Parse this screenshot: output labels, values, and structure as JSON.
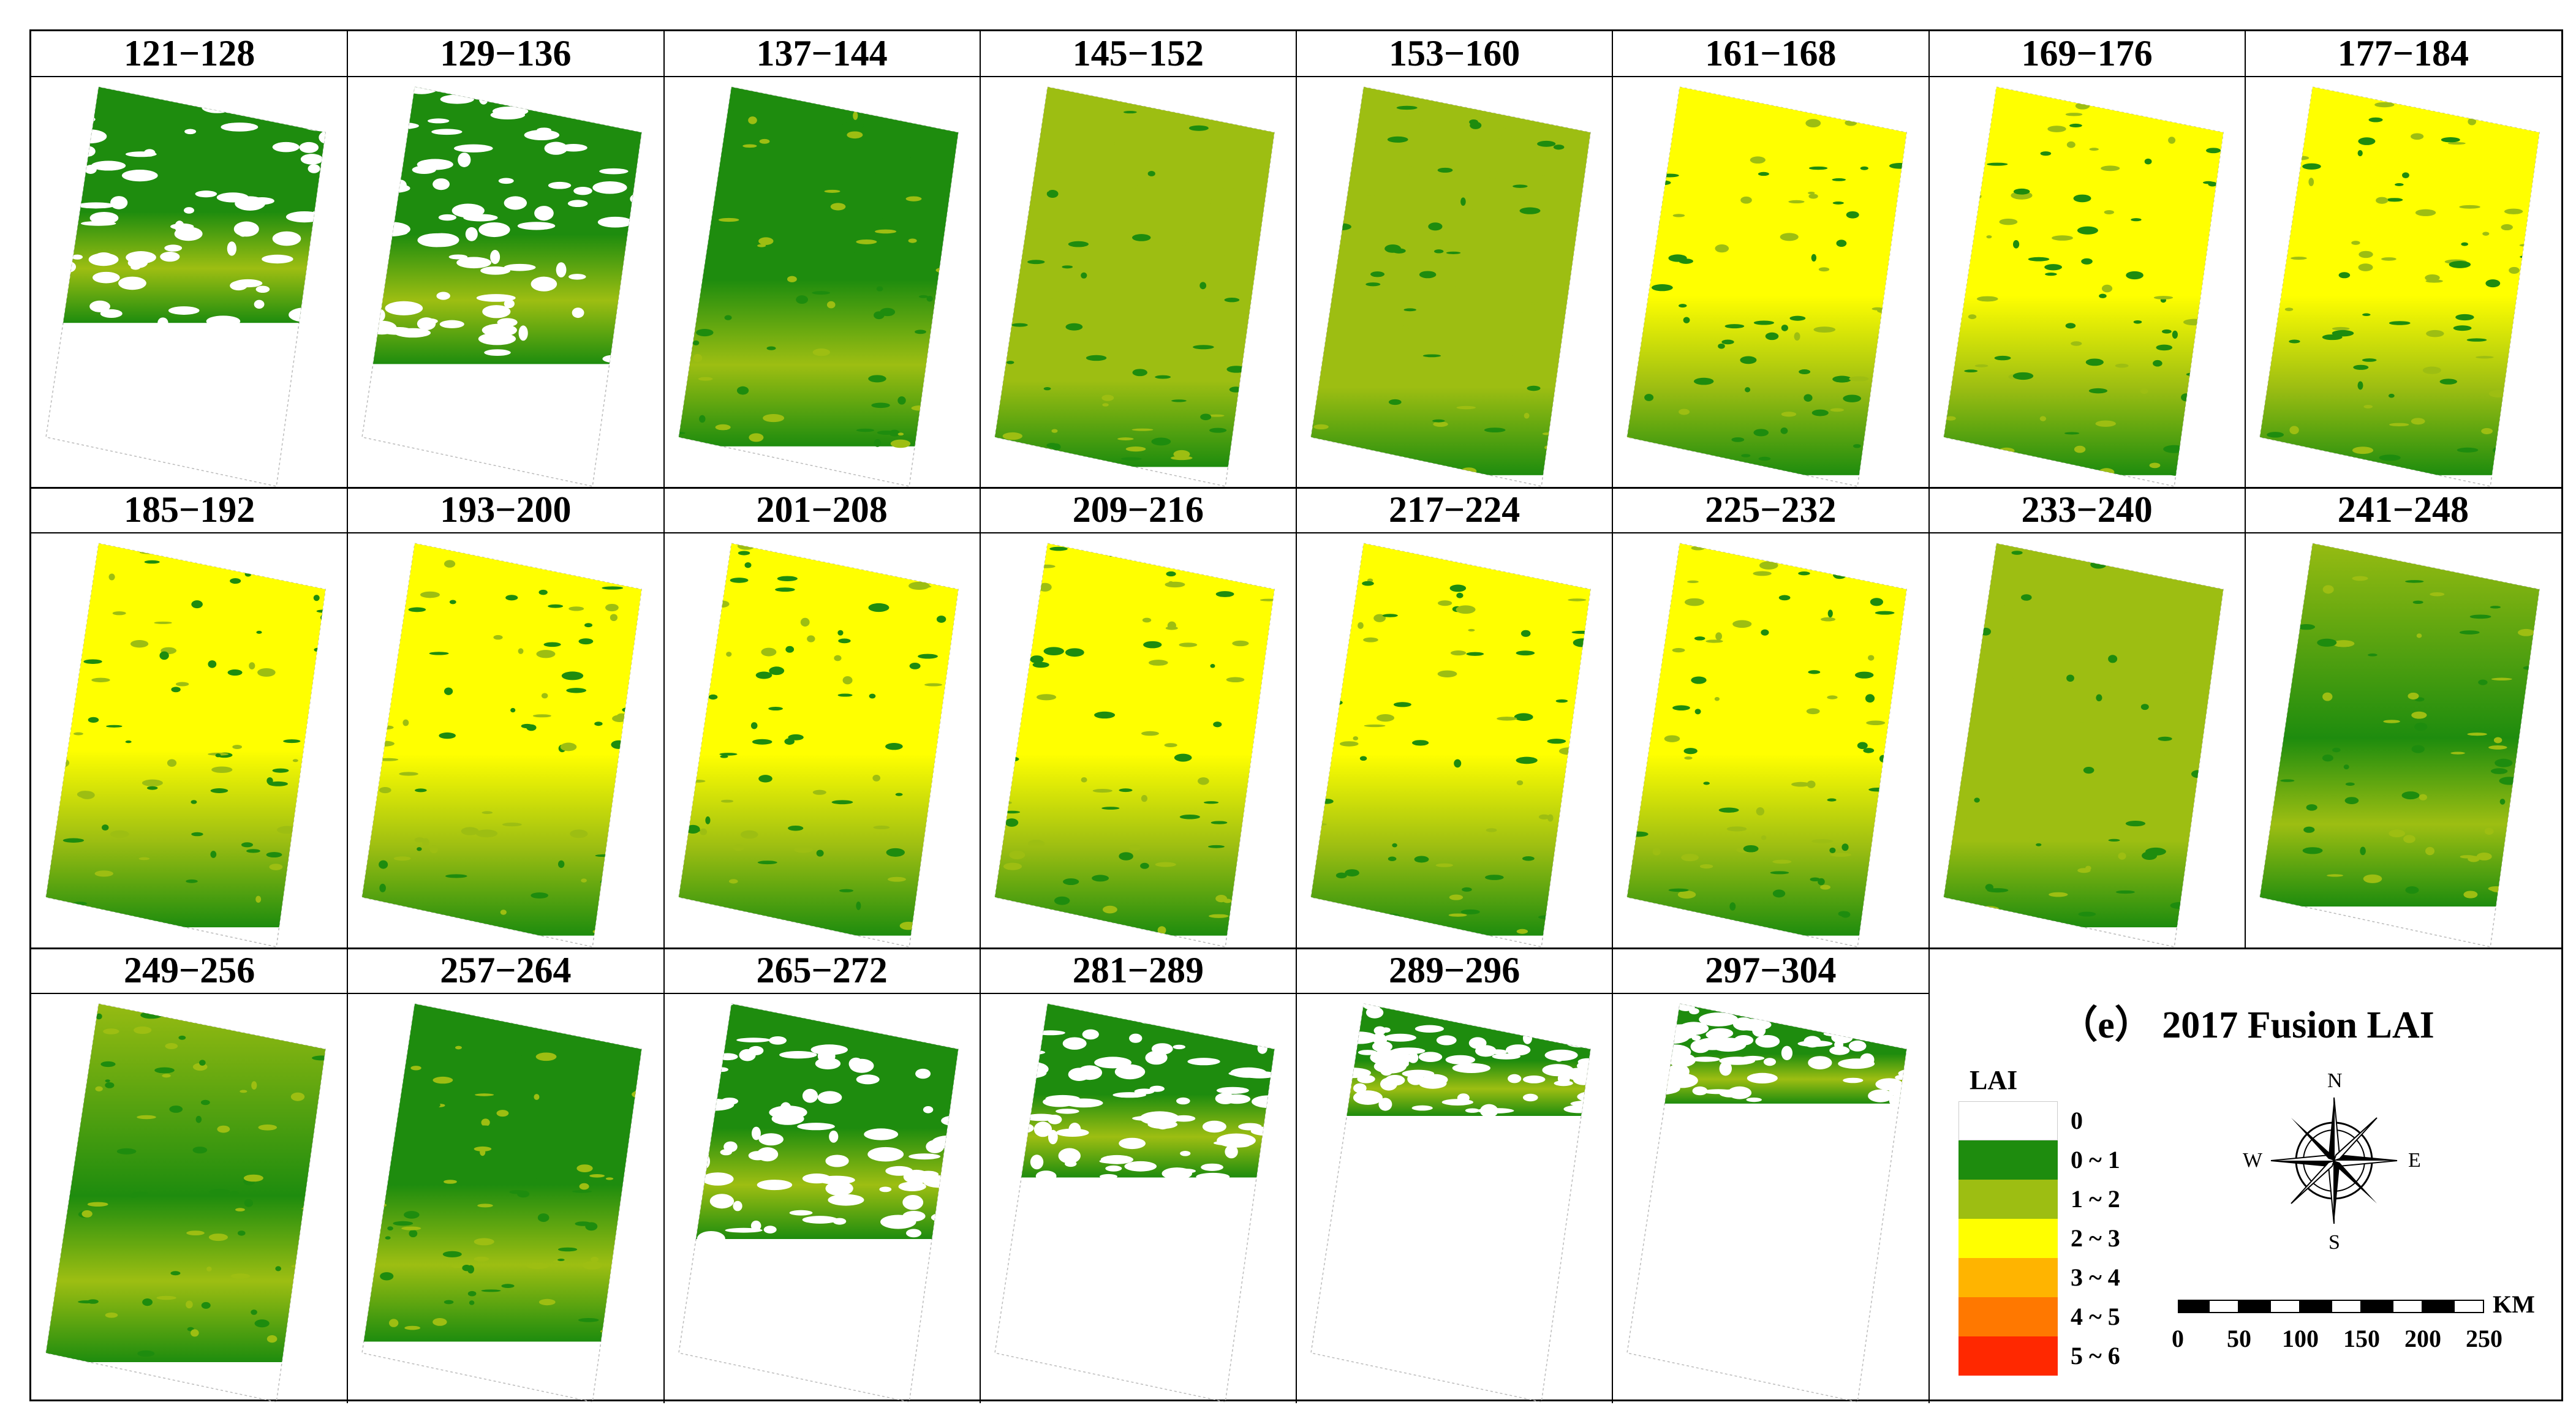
{
  "panels": [
    {
      "label": "121−128",
      "level": 0.55,
      "green": 0.95
    },
    {
      "label": "129−136",
      "level": 0.65,
      "green": 0.95
    },
    {
      "label": "137−144",
      "level": 0.85,
      "green": 0.85
    },
    {
      "label": "145−152",
      "level": 0.9,
      "green": 0.55
    },
    {
      "label": "153−160",
      "level": 0.92,
      "green": 0.5
    },
    {
      "label": "161−168",
      "level": 0.92,
      "green": 0.3
    },
    {
      "label": "169−176",
      "level": 0.92,
      "green": 0.25
    },
    {
      "label": "177−184",
      "level": 0.92,
      "green": 0.2
    },
    {
      "label": "185−192",
      "level": 0.9,
      "green": 0.2
    },
    {
      "label": "193−200",
      "level": 0.92,
      "green": 0.2
    },
    {
      "label": "201−208",
      "level": 0.92,
      "green": 0.2
    },
    {
      "label": "209−216",
      "level": 0.92,
      "green": 0.25
    },
    {
      "label": "217−224",
      "level": 0.92,
      "green": 0.25
    },
    {
      "label": "225−232",
      "level": 0.92,
      "green": 0.3
    },
    {
      "label": "233−240",
      "level": 0.9,
      "green": 0.55
    },
    {
      "label": "241−248",
      "level": 0.85,
      "green": 0.75
    },
    {
      "label": "249−256",
      "level": 0.85,
      "green": 0.75
    },
    {
      "label": "257−264",
      "level": 0.8,
      "green": 0.85
    },
    {
      "label": "265−272",
      "level": 0.55,
      "green": 0.95
    },
    {
      "label": "281−289",
      "level": 0.4,
      "green": 0.95
    },
    {
      "label": "289−296",
      "level": 0.25,
      "green": 0.95
    },
    {
      "label": "297−304",
      "level": 0.22,
      "green": 0.95
    }
  ],
  "legend": {
    "title": "（e） 2017  Fusion LAI",
    "lai_label": "LAI",
    "classes": [
      {
        "label": "0",
        "color": "#ffffff"
      },
      {
        "label": "0 ~ 1",
        "color": "#1e8c0e"
      },
      {
        "label": "1 ~ 2",
        "color": "#9dbe12"
      },
      {
        "label": "2 ~ 3",
        "color": "#ffff00"
      },
      {
        "label": "3 ~ 4",
        "color": "#ffb400"
      },
      {
        "label": "4 ~ 5",
        "color": "#ff7800"
      },
      {
        "label": "5 ~ 6",
        "color": "#ff2800"
      }
    ]
  },
  "compass": {
    "north": "N",
    "south": "S",
    "east": "E",
    "west": "W"
  },
  "scale_bar": {
    "unit": "KM",
    "ticks": [
      "0",
      "50",
      "100",
      "150",
      "200",
      "250"
    ]
  },
  "colors": {
    "dark_green": "#1e8c0e",
    "mid_green": "#9dbe12",
    "yellow": "#ffff00",
    "white": "#ffffff"
  }
}
